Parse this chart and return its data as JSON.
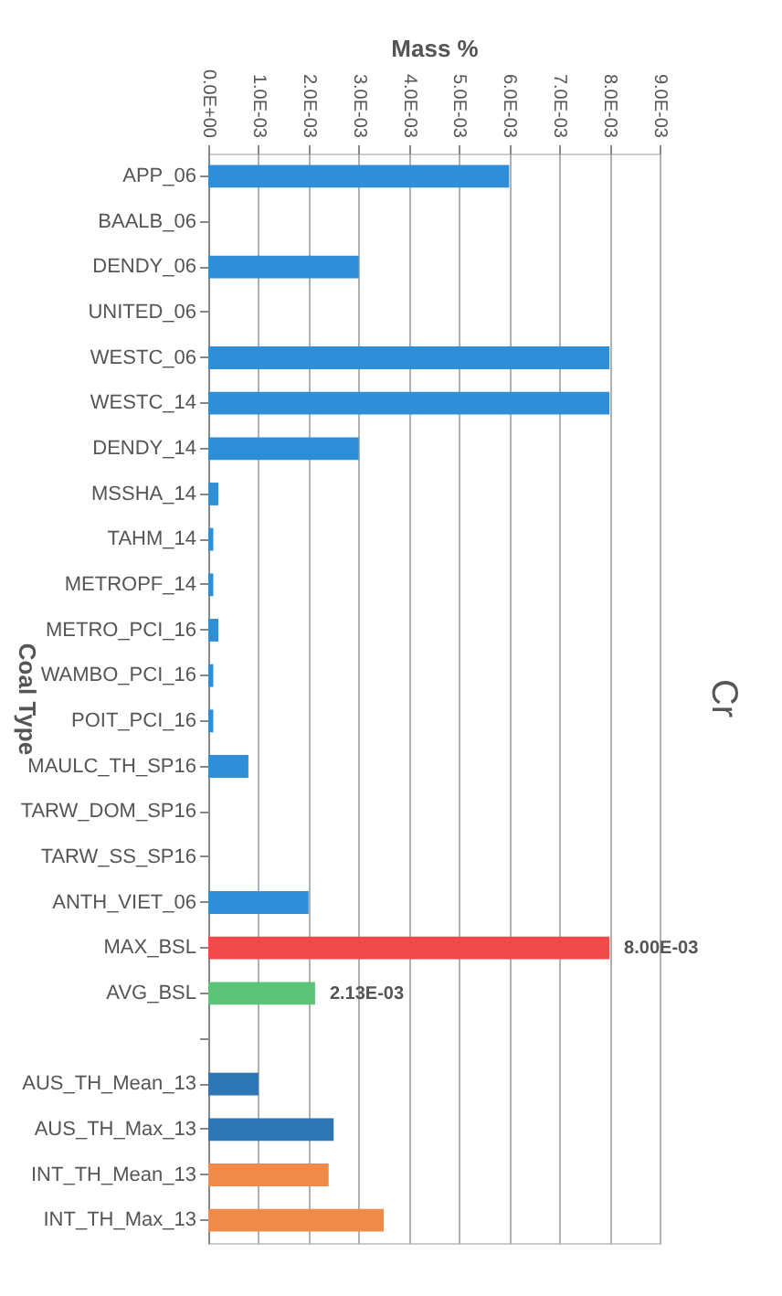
{
  "chart_data": {
    "type": "bar",
    "orientation": "horizontal",
    "title": "Cr",
    "xlabel": "Mass %",
    "ylabel": "Coal Type",
    "categories": [
      "APP_06",
      "BAALB_06",
      "DENDY_06",
      "UNITED_06",
      "WESTC_06",
      "WESTC_14",
      "DENDY_14",
      "MSSHA_14",
      "TAHM_14",
      "METROPF_14",
      "METRO_PCI_16",
      "WAMBO_PCI_16",
      "POIT_PCI_16",
      "MAULC_TH_SP16",
      "TARW_DOM_SP16",
      "TARW_SS_SP16",
      "ANTH_VIET_06",
      "MAX_BSL",
      "AVG_BSL",
      null,
      "AUS_TH_Mean_13",
      "AUS_TH_Max_13",
      "INT_TH_Mean_13",
      "INT_TH_Max_13"
    ],
    "values": [
      0.006,
      null,
      0.003,
      null,
      0.008,
      0.008,
      0.003,
      0.0002,
      0.0001,
      0.0001,
      0.0002,
      0.0001,
      0.0001,
      0.0008,
      null,
      null,
      0.002,
      0.008,
      0.00213,
      null,
      0.001,
      0.0025,
      0.0024,
      0.0035
    ],
    "colors": [
      "#2e8fd8",
      "#2e8fd8",
      "#2e8fd8",
      "#2e8fd8",
      "#2e8fd8",
      "#2e8fd8",
      "#2e8fd8",
      "#2e8fd8",
      "#2e8fd8",
      "#2e8fd8",
      "#2e8fd8",
      "#2e8fd8",
      "#2e8fd8",
      "#2e8fd8",
      "#2e8fd8",
      "#2e8fd8",
      "#2e8fd8",
      "#f04a4a",
      "#5cc47a",
      "#2e8fd8",
      "#2e75b6",
      "#2e75b6",
      "#f08a4b",
      "#f08a4b"
    ],
    "value_labels": [
      null,
      null,
      null,
      null,
      null,
      null,
      null,
      null,
      null,
      null,
      null,
      null,
      null,
      null,
      null,
      null,
      null,
      "8.00E-03",
      "2.13E-03",
      null,
      null,
      null,
      null,
      null
    ],
    "xlim": [
      0,
      0.009
    ],
    "xticks": [
      {
        "value": 0,
        "label": "0.0E+00"
      },
      {
        "value": 0.001,
        "label": "1.0E-03"
      },
      {
        "value": 0.002,
        "label": "2.0E-03"
      },
      {
        "value": 0.003,
        "label": "3.0E-03"
      },
      {
        "value": 0.004,
        "label": "4.0E-03"
      },
      {
        "value": 0.005,
        "label": "5.0E-03"
      },
      {
        "value": 0.006,
        "label": "6.0E-03"
      },
      {
        "value": 0.007,
        "label": "7.0E-03"
      },
      {
        "value": 0.008,
        "label": "8.0E-03"
      },
      {
        "value": 0.009,
        "label": "9.0E-03"
      }
    ],
    "grid": "x"
  }
}
